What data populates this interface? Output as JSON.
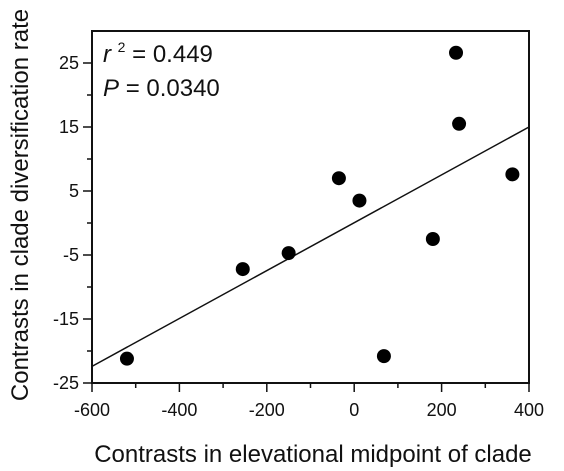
{
  "chart_data": {
    "type": "scatter",
    "title": "",
    "xlabel": "Contrasts in elevational midpoint of clade",
    "ylabel": "Contrasts in clade diversification rate",
    "xlim": [
      -600,
      400
    ],
    "ylim": [
      -25,
      30
    ],
    "x_ticks": [
      "-600",
      "-400",
      "-200",
      "0",
      "200",
      "400"
    ],
    "y_ticks": [
      "25",
      "15",
      "5",
      "-5",
      "-15",
      "-25"
    ],
    "grid": false,
    "series": [
      {
        "points": [
          {
            "x": -520,
            "y": -21.2
          },
          {
            "x": -255,
            "y": -7.2
          },
          {
            "x": -150,
            "y": -4.7
          },
          {
            "x": -35,
            "y": 7.0
          },
          {
            "x": 12,
            "y": 3.5
          },
          {
            "x": 68,
            "y": -20.8
          },
          {
            "x": 180,
            "y": -2.5
          },
          {
            "x": 233,
            "y": 26.6
          },
          {
            "x": 240,
            "y": 15.5
          },
          {
            "x": 362,
            "y": 7.6
          }
        ]
      }
    ],
    "fit_line": {
      "points": [
        {
          "x": -600,
          "y": -22.4
        },
        {
          "x": 400,
          "y": 15.0
        }
      ]
    },
    "annotations": [
      {
        "variable": "r",
        "sup": "2",
        "text": "= 0.449"
      },
      {
        "variable": "P",
        "text": " = 0.0340"
      }
    ]
  }
}
